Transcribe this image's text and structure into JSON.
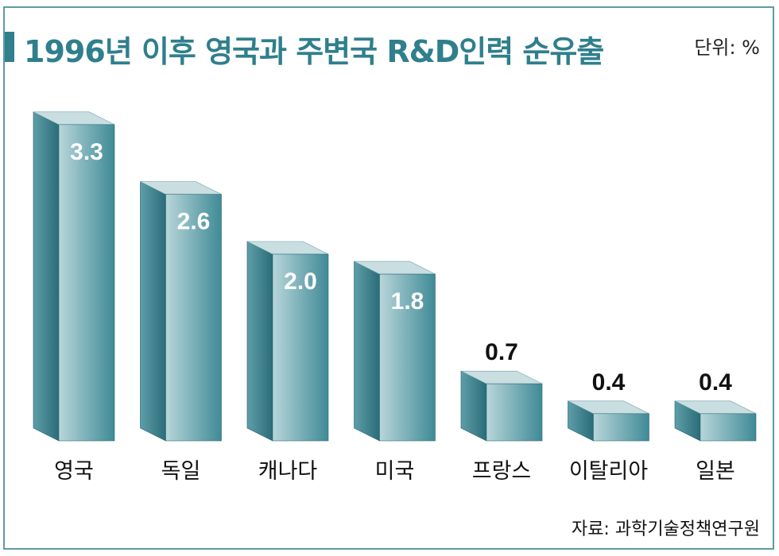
{
  "title": "1996년 이후 영국과 주변국 R&D인력 순유출",
  "unit": "단위: %",
  "source": "자료: 과학기술정책연구원",
  "colors": {
    "accent": "#2f7f8c",
    "bar_front_dark": "#3f8a96",
    "bar_front_light": "#b8d6da",
    "bar_side": "#2a6c78",
    "bar_top": "#c9dee1",
    "frame": "#5f9aa3"
  },
  "chart_data": {
    "type": "bar",
    "title": "1996년 이후 영국과 주변국 R&D인력 순유출",
    "ylabel": "단위: %",
    "categories": [
      "영국",
      "독일",
      "캐나다",
      "미국",
      "프랑스",
      "이탈리아",
      "일본"
    ],
    "values": [
      3.3,
      2.6,
      2.0,
      1.8,
      0.7,
      0.4,
      0.4
    ],
    "value_labels": [
      "3.3",
      "2.6",
      "2.0",
      "1.8",
      "0.7",
      "0.4",
      "0.4"
    ],
    "ylim": [
      0,
      3.3
    ],
    "grid": false,
    "legend": "none"
  }
}
